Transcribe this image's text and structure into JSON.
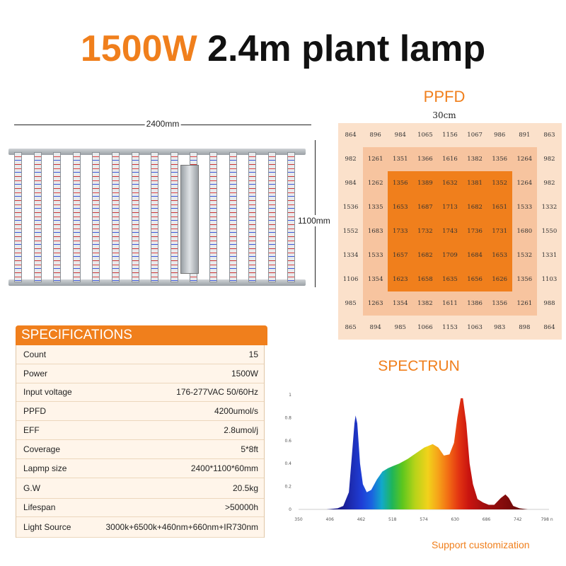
{
  "title": {
    "accent": "1500W",
    "rest": "2.4m plant lamp"
  },
  "lamp": {
    "width_label": "2400mm",
    "height_label": "1100mm",
    "bar_count": 15
  },
  "ppfd": {
    "title": "PPFD",
    "subtitle": "30cm",
    "rows": [
      [
        "864",
        "896",
        "984",
        "1065",
        "1156",
        "1067",
        "986",
        "891",
        "863"
      ],
      [
        "982",
        "1261",
        "1351",
        "1366",
        "1616",
        "1382",
        "1356",
        "1264",
        "982"
      ],
      [
        "984",
        "1262",
        "1356",
        "1389",
        "1632",
        "1381",
        "1352",
        "1264",
        "982"
      ],
      [
        "1536",
        "1335",
        "1653",
        "1687",
        "1713",
        "1682",
        "1651",
        "1533",
        "1332"
      ],
      [
        "1552",
        "1683",
        "1733",
        "1732",
        "1743",
        "1736",
        "1731",
        "1680",
        "1550"
      ],
      [
        "1334",
        "1533",
        "1657",
        "1682",
        "1709",
        "1684",
        "1653",
        "1532",
        "1331"
      ],
      [
        "1106",
        "1354",
        "1623",
        "1658",
        "1635",
        "1656",
        "1626",
        "1356",
        "1103"
      ],
      [
        "985",
        "1263",
        "1354",
        "1382",
        "1611",
        "1386",
        "1356",
        "1261",
        "988"
      ],
      [
        "865",
        "894",
        "985",
        "1066",
        "1153",
        "1063",
        "983",
        "898",
        "864"
      ]
    ],
    "colors": {
      "outer": "#FBE1CB",
      "middle": "#F7C49F",
      "inner": "#F07F1C"
    }
  },
  "specifications": {
    "title": "SPECIFICATIONS",
    "rows": [
      {
        "label": "Count",
        "value": "15"
      },
      {
        "label": "Power",
        "value": "1500W"
      },
      {
        "label": "Input voltage",
        "value": "176-277VAC 50/60Hz"
      },
      {
        "label": "PPFD",
        "value": "4200umol/s"
      },
      {
        "label": "EFF",
        "value": "2.8umol/j"
      },
      {
        "label": "Coverage",
        "value": "5*8ft"
      },
      {
        "label": "Lapmp size",
        "value": "2400*1100*60mm"
      },
      {
        "label": "G.W",
        "value": "20.5kg"
      },
      {
        "label": "Lifespan",
        "value": ">50000h"
      },
      {
        "label": "Light Source",
        "value": "3000k+6500k+460nm+660nm+IR730nm"
      }
    ]
  },
  "spectrum": {
    "title": "SPECTRUN",
    "x_ticks": [
      "350",
      "406",
      "462",
      "518",
      "574",
      "630",
      "686",
      "742",
      "798 nm"
    ],
    "y_ticks": [
      "0",
      "0.2",
      "0.4",
      "0.6",
      "0.8",
      "1"
    ],
    "x_range": [
      350,
      798
    ],
    "y_range": [
      0,
      1
    ],
    "curve": [
      [
        380,
        0.0
      ],
      [
        400,
        0.0
      ],
      [
        420,
        0.01
      ],
      [
        430,
        0.03
      ],
      [
        440,
        0.15
      ],
      [
        445,
        0.45
      ],
      [
        450,
        0.75
      ],
      [
        452,
        0.82
      ],
      [
        455,
        0.75
      ],
      [
        460,
        0.4
      ],
      [
        465,
        0.22
      ],
      [
        472,
        0.15
      ],
      [
        480,
        0.17
      ],
      [
        490,
        0.26
      ],
      [
        500,
        0.33
      ],
      [
        510,
        0.36
      ],
      [
        520,
        0.38
      ],
      [
        530,
        0.4
      ],
      [
        545,
        0.44
      ],
      [
        560,
        0.49
      ],
      [
        575,
        0.54
      ],
      [
        590,
        0.57
      ],
      [
        600,
        0.54
      ],
      [
        610,
        0.47
      ],
      [
        620,
        0.48
      ],
      [
        628,
        0.58
      ],
      [
        634,
        0.8
      ],
      [
        640,
        0.97
      ],
      [
        644,
        0.97
      ],
      [
        650,
        0.75
      ],
      [
        656,
        0.4
      ],
      [
        662,
        0.22
      ],
      [
        670,
        0.09
      ],
      [
        680,
        0.06
      ],
      [
        690,
        0.04
      ],
      [
        700,
        0.04
      ],
      [
        712,
        0.1
      ],
      [
        720,
        0.13
      ],
      [
        726,
        0.1
      ],
      [
        734,
        0.03
      ],
      [
        745,
        0.01
      ],
      [
        760,
        0.0
      ],
      [
        790,
        0.0
      ]
    ]
  },
  "footer": {
    "support": "Support customization"
  }
}
